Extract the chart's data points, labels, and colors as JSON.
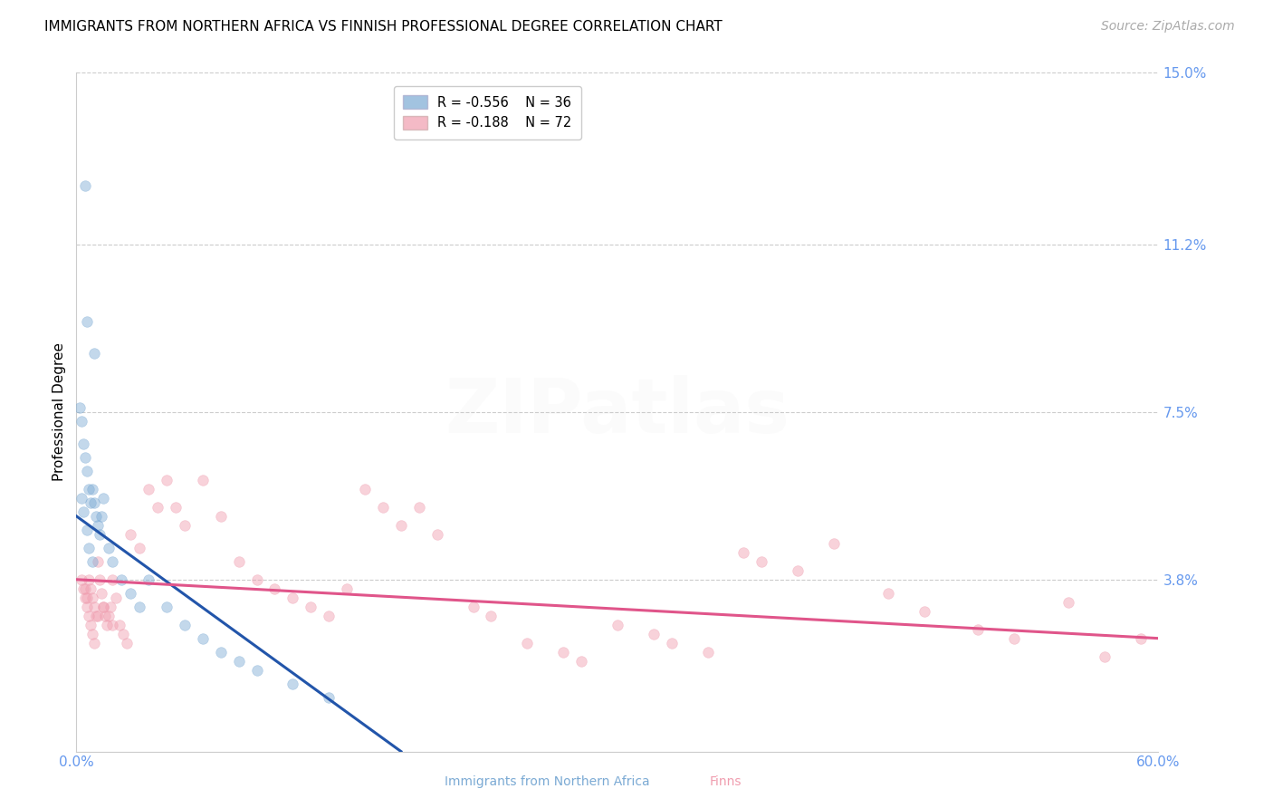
{
  "title": "IMMIGRANTS FROM NORTHERN AFRICA VS FINNISH PROFESSIONAL DEGREE CORRELATION CHART",
  "source": "Source: ZipAtlas.com",
  "ylabel": "Professional Degree",
  "xlim": [
    0.0,
    60.0
  ],
  "ylim": [
    0.0,
    15.0
  ],
  "yticks": [
    0.0,
    3.8,
    7.5,
    11.2,
    15.0
  ],
  "ytick_labels": [
    "",
    "3.8%",
    "7.5%",
    "11.2%",
    "15.0%"
  ],
  "xtick_positions": [
    0.0,
    60.0
  ],
  "xtick_labels": [
    "0.0%",
    "60.0%"
  ],
  "legend_entries": [
    {
      "label": "Immigrants from Northern Africa",
      "color": "#a8c4e0",
      "R": "-0.556",
      "N": "36"
    },
    {
      "label": "Finns",
      "color": "#f5a0b0",
      "R": "-0.188",
      "N": "72"
    }
  ],
  "blue_scatter_x": [
    0.5,
    0.6,
    1.0,
    0.2,
    0.3,
    0.4,
    0.5,
    0.6,
    0.7,
    0.8,
    0.9,
    1.0,
    1.1,
    1.2,
    1.3,
    1.5,
    1.8,
    2.0,
    2.5,
    3.0,
    3.5,
    4.0,
    5.0,
    6.0,
    7.0,
    8.0,
    9.0,
    10.0,
    12.0,
    14.0,
    0.3,
    0.4,
    0.6,
    0.7,
    0.9,
    1.4
  ],
  "blue_scatter_y": [
    12.5,
    9.5,
    8.8,
    7.6,
    7.3,
    6.8,
    6.5,
    6.2,
    5.8,
    5.5,
    5.8,
    5.5,
    5.2,
    5.0,
    4.8,
    5.6,
    4.5,
    4.2,
    3.8,
    3.5,
    3.2,
    3.8,
    3.2,
    2.8,
    2.5,
    2.2,
    2.0,
    1.8,
    1.5,
    1.2,
    5.6,
    5.3,
    4.9,
    4.5,
    4.2,
    5.2
  ],
  "pink_scatter_x": [
    0.3,
    0.4,
    0.5,
    0.6,
    0.7,
    0.8,
    0.9,
    1.0,
    1.1,
    1.2,
    1.3,
    1.4,
    1.5,
    1.6,
    1.7,
    1.8,
    1.9,
    2.0,
    2.2,
    2.4,
    2.6,
    2.8,
    3.0,
    3.5,
    4.0,
    4.5,
    5.0,
    5.5,
    6.0,
    7.0,
    8.0,
    9.0,
    10.0,
    11.0,
    12.0,
    13.0,
    14.0,
    15.0,
    16.0,
    17.0,
    18.0,
    19.0,
    20.0,
    22.0,
    23.0,
    25.0,
    27.0,
    28.0,
    30.0,
    32.0,
    33.0,
    35.0,
    37.0,
    38.0,
    40.0,
    42.0,
    45.0,
    47.0,
    50.0,
    52.0,
    55.0,
    57.0,
    59.0,
    0.5,
    0.6,
    0.7,
    0.8,
    0.9,
    1.0,
    1.2,
    1.5,
    2.0
  ],
  "pink_scatter_y": [
    3.8,
    3.6,
    3.4,
    3.2,
    3.8,
    3.6,
    3.4,
    3.2,
    3.0,
    4.2,
    3.8,
    3.5,
    3.2,
    3.0,
    2.8,
    3.0,
    3.2,
    3.8,
    3.4,
    2.8,
    2.6,
    2.4,
    4.8,
    4.5,
    5.8,
    5.4,
    6.0,
    5.4,
    5.0,
    6.0,
    5.2,
    4.2,
    3.8,
    3.6,
    3.4,
    3.2,
    3.0,
    3.6,
    5.8,
    5.4,
    5.0,
    5.4,
    4.8,
    3.2,
    3.0,
    2.4,
    2.2,
    2.0,
    2.8,
    2.6,
    2.4,
    2.2,
    4.4,
    4.2,
    4.0,
    4.6,
    3.5,
    3.1,
    2.7,
    2.5,
    3.3,
    2.1,
    2.5,
    3.6,
    3.4,
    3.0,
    2.8,
    2.6,
    2.4,
    3.0,
    3.2,
    2.8
  ],
  "blue_line_x": [
    0.0,
    18.0
  ],
  "blue_line_y": [
    5.2,
    0.0
  ],
  "pink_line_x": [
    0.0,
    60.0
  ],
  "pink_line_y": [
    3.8,
    2.5
  ],
  "scatter_size": 70,
  "scatter_alpha": 0.45,
  "blue_color": "#7baad4",
  "pink_color": "#f09daf",
  "grid_color": "#cccccc",
  "grid_linestyle": "--",
  "background_color": "#ffffff",
  "title_fontsize": 11,
  "axis_label_fontsize": 11,
  "tick_fontsize": 11,
  "source_fontsize": 10,
  "watermark_text": "ZIPatlas",
  "watermark_alpha": 0.07
}
